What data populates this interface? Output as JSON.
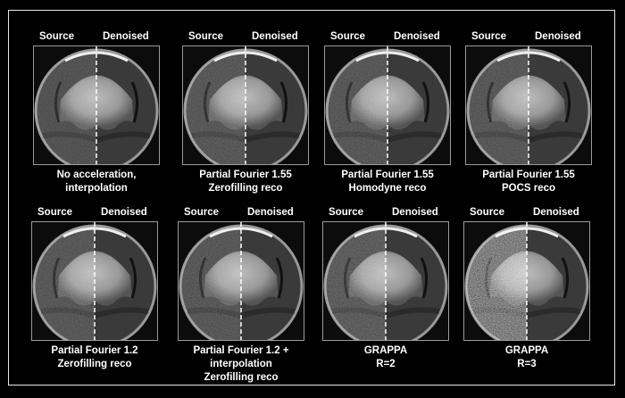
{
  "labels": {
    "source": "Source",
    "denoised": "Denoised"
  },
  "panels": [
    {
      "caption": [
        "No acceleration,",
        "interpolation"
      ],
      "noise": 0.25
    },
    {
      "caption": [
        "Partial Fourier 1.55",
        "Zerofilling reco"
      ],
      "noise": 0.3
    },
    {
      "caption": [
        "Partial Fourier 1.55",
        "Homodyne reco"
      ],
      "noise": 0.3
    },
    {
      "caption": [
        "Partial Fourier 1.55",
        "POCS reco"
      ],
      "noise": 0.3
    },
    {
      "caption": [
        "Partial Fourier 1.2",
        "Zerofilling reco"
      ],
      "noise": 0.3
    },
    {
      "caption": [
        "Partial Fourier 1.2 +",
        "interpolation",
        "Zerofilling reco"
      ],
      "noise": 0.3
    },
    {
      "caption": [
        "GRAPPA",
        "R=2"
      ],
      "noise": 0.35
    },
    {
      "caption": [
        "GRAPPA",
        "R=3"
      ],
      "noise": 0.7
    }
  ]
}
